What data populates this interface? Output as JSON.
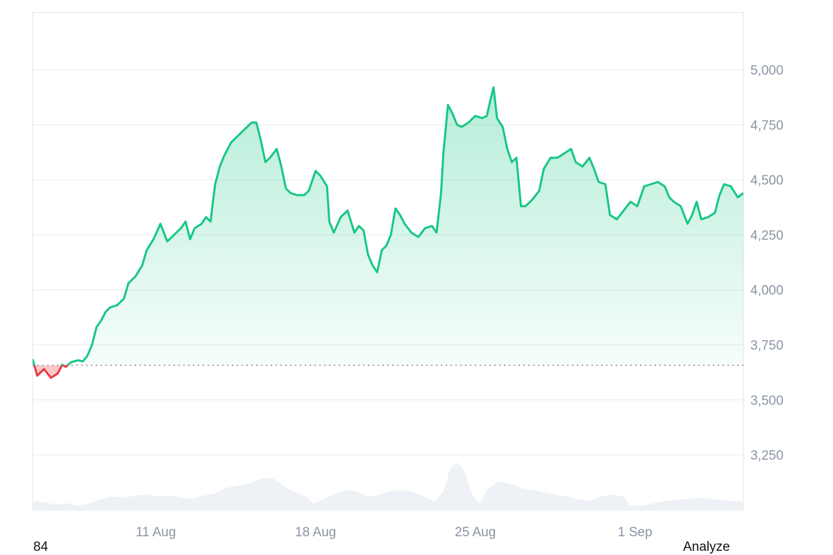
{
  "chart_data": {
    "type": "area",
    "ylim": [
      3000,
      5260
    ],
    "yticks": [
      5000,
      4750,
      4500,
      4250,
      4000,
      3750,
      3500,
      3250
    ],
    "ytick_labels": [
      "5,000",
      "4,750",
      "4,500",
      "4,250",
      "4,000",
      "3,750",
      "3,500",
      "3,250"
    ],
    "xlim": [
      0,
      31.15
    ],
    "xticks": [
      {
        "pos": 5.4,
        "label": "11 Aug"
      },
      {
        "pos": 12.4,
        "label": "18 Aug"
      },
      {
        "pos": 19.4,
        "label": "25 Aug"
      },
      {
        "pos": 26.4,
        "label": "1 Sep"
      }
    ],
    "baseline": 3657,
    "colors": {
      "up": "#16c784",
      "down": "#ea3943",
      "volume": "#eef1f5",
      "grid": "#eef0f3",
      "baseline": "#888888"
    },
    "price_series": [
      [
        0.0,
        3685
      ],
      [
        0.2,
        3610
      ],
      [
        0.5,
        3640
      ],
      [
        0.8,
        3600
      ],
      [
        1.1,
        3620
      ],
      [
        1.3,
        3660
      ],
      [
        1.45,
        3650
      ],
      [
        1.7,
        3672
      ],
      [
        2.0,
        3680
      ],
      [
        2.2,
        3675
      ],
      [
        2.4,
        3700
      ],
      [
        2.6,
        3750
      ],
      [
        2.8,
        3830
      ],
      [
        3.0,
        3860
      ],
      [
        3.2,
        3900
      ],
      [
        3.4,
        3920
      ],
      [
        3.7,
        3930
      ],
      [
        4.0,
        3960
      ],
      [
        4.2,
        4030
      ],
      [
        4.5,
        4060
      ],
      [
        4.8,
        4110
      ],
      [
        5.0,
        4180
      ],
      [
        5.3,
        4230
      ],
      [
        5.6,
        4300
      ],
      [
        5.9,
        4220
      ],
      [
        6.2,
        4250
      ],
      [
        6.5,
        4280
      ],
      [
        6.7,
        4310
      ],
      [
        6.9,
        4230
      ],
      [
        7.1,
        4280
      ],
      [
        7.4,
        4300
      ],
      [
        7.6,
        4330
      ],
      [
        7.8,
        4310
      ],
      [
        7.9,
        4400
      ],
      [
        8.0,
        4480
      ],
      [
        8.2,
        4560
      ],
      [
        8.4,
        4610
      ],
      [
        8.7,
        4670
      ],
      [
        9.0,
        4700
      ],
      [
        9.3,
        4730
      ],
      [
        9.6,
        4760
      ],
      [
        9.8,
        4760
      ],
      [
        10.0,
        4680
      ],
      [
        10.2,
        4580
      ],
      [
        10.4,
        4600
      ],
      [
        10.7,
        4640
      ],
      [
        10.9,
        4560
      ],
      [
        11.1,
        4460
      ],
      [
        11.3,
        4440
      ],
      [
        11.6,
        4430
      ],
      [
        11.9,
        4430
      ],
      [
        12.1,
        4450
      ],
      [
        12.2,
        4480
      ],
      [
        12.4,
        4540
      ],
      [
        12.6,
        4520
      ],
      [
        12.9,
        4470
      ],
      [
        13.0,
        4310
      ],
      [
        13.2,
        4260
      ],
      [
        13.5,
        4330
      ],
      [
        13.8,
        4360
      ],
      [
        14.1,
        4260
      ],
      [
        14.3,
        4290
      ],
      [
        14.5,
        4270
      ],
      [
        14.7,
        4160
      ],
      [
        14.9,
        4110
      ],
      [
        15.1,
        4080
      ],
      [
        15.3,
        4180
      ],
      [
        15.5,
        4200
      ],
      [
        15.7,
        4250
      ],
      [
        15.9,
        4370
      ],
      [
        16.1,
        4340
      ],
      [
        16.3,
        4300
      ],
      [
        16.6,
        4260
      ],
      [
        16.9,
        4240
      ],
      [
        17.2,
        4280
      ],
      [
        17.5,
        4290
      ],
      [
        17.7,
        4260
      ],
      [
        17.9,
        4440
      ],
      [
        18.0,
        4620
      ],
      [
        18.2,
        4840
      ],
      [
        18.4,
        4800
      ],
      [
        18.6,
        4750
      ],
      [
        18.8,
        4740
      ],
      [
        19.1,
        4760
      ],
      [
        19.4,
        4790
      ],
      [
        19.7,
        4780
      ],
      [
        19.9,
        4790
      ],
      [
        20.1,
        4880
      ],
      [
        20.2,
        4920
      ],
      [
        20.35,
        4780
      ],
      [
        20.6,
        4740
      ],
      [
        20.8,
        4640
      ],
      [
        21.0,
        4580
      ],
      [
        21.2,
        4600
      ],
      [
        21.4,
        4380
      ],
      [
        21.6,
        4380
      ],
      [
        21.9,
        4410
      ],
      [
        22.2,
        4450
      ],
      [
        22.4,
        4550
      ],
      [
        22.7,
        4600
      ],
      [
        23.0,
        4600
      ],
      [
        23.3,
        4620
      ],
      [
        23.6,
        4640
      ],
      [
        23.8,
        4580
      ],
      [
        24.1,
        4560
      ],
      [
        24.4,
        4600
      ],
      [
        24.6,
        4550
      ],
      [
        24.8,
        4490
      ],
      [
        25.1,
        4480
      ],
      [
        25.3,
        4340
      ],
      [
        25.6,
        4320
      ],
      [
        25.9,
        4360
      ],
      [
        26.2,
        4400
      ],
      [
        26.5,
        4380
      ],
      [
        26.8,
        4470
      ],
      [
        27.1,
        4480
      ],
      [
        27.4,
        4490
      ],
      [
        27.7,
        4470
      ],
      [
        27.9,
        4420
      ],
      [
        28.1,
        4400
      ],
      [
        28.4,
        4380
      ],
      [
        28.7,
        4300
      ],
      [
        28.9,
        4340
      ],
      [
        29.1,
        4400
      ],
      [
        29.3,
        4320
      ],
      [
        29.6,
        4330
      ],
      [
        29.9,
        4350
      ],
      [
        30.1,
        4430
      ],
      [
        30.3,
        4480
      ],
      [
        30.6,
        4470
      ],
      [
        30.9,
        4420
      ],
      [
        31.15,
        4440
      ]
    ],
    "volume_series": [
      [
        0.0,
        3040
      ],
      [
        0.5,
        3035
      ],
      [
        1.0,
        3025
      ],
      [
        1.5,
        3030
      ],
      [
        2.0,
        3020
      ],
      [
        2.5,
        3030
      ],
      [
        3.0,
        3050
      ],
      [
        3.5,
        3060
      ],
      [
        4.0,
        3055
      ],
      [
        4.5,
        3065
      ],
      [
        5.0,
        3070
      ],
      [
        5.5,
        3060
      ],
      [
        6.0,
        3065
      ],
      [
        6.5,
        3055
      ],
      [
        7.0,
        3050
      ],
      [
        7.5,
        3065
      ],
      [
        8.0,
        3075
      ],
      [
        8.5,
        3100
      ],
      [
        9.0,
        3110
      ],
      [
        9.5,
        3120
      ],
      [
        10.0,
        3140
      ],
      [
        10.5,
        3145
      ],
      [
        11.0,
        3110
      ],
      [
        11.5,
        3080
      ],
      [
        12.0,
        3060
      ],
      [
        12.3,
        3030
      ],
      [
        12.7,
        3045
      ],
      [
        13.2,
        3070
      ],
      [
        13.7,
        3090
      ],
      [
        14.2,
        3085
      ],
      [
        14.7,
        3060
      ],
      [
        15.2,
        3070
      ],
      [
        15.7,
        3085
      ],
      [
        16.2,
        3090
      ],
      [
        16.7,
        3080
      ],
      [
        17.2,
        3060
      ],
      [
        17.6,
        3040
      ],
      [
        18.0,
        3080
      ],
      [
        18.3,
        3190
      ],
      [
        18.6,
        3215
      ],
      [
        18.9,
        3180
      ],
      [
        19.3,
        3060
      ],
      [
        19.6,
        3030
      ],
      [
        19.9,
        3090
      ],
      [
        20.4,
        3130
      ],
      [
        20.9,
        3120
      ],
      [
        21.4,
        3100
      ],
      [
        21.9,
        3090
      ],
      [
        22.4,
        3080
      ],
      [
        22.9,
        3070
      ],
      [
        23.4,
        3060
      ],
      [
        23.9,
        3050
      ],
      [
        24.4,
        3040
      ],
      [
        24.9,
        3060
      ],
      [
        25.4,
        3070
      ],
      [
        25.9,
        3060
      ],
      [
        26.2,
        3020
      ],
      [
        26.7,
        3020
      ],
      [
        27.2,
        3030
      ],
      [
        27.7,
        3040
      ],
      [
        28.2,
        3045
      ],
      [
        28.7,
        3050
      ],
      [
        29.2,
        3055
      ],
      [
        29.7,
        3050
      ],
      [
        30.2,
        3045
      ],
      [
        30.7,
        3040
      ],
      [
        31.15,
        3040
      ]
    ]
  },
  "footer": {
    "left_text": "84",
    "right_link": "Analyze"
  }
}
